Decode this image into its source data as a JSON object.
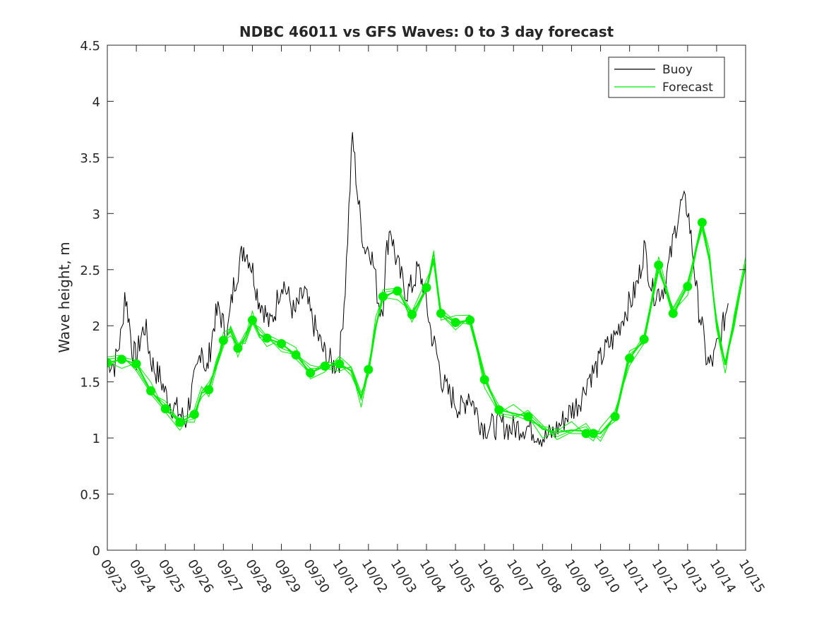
{
  "chart_data": {
    "type": "line",
    "title": "NDBC 46011 vs GFS Waves: 0 to 3 day forecast",
    "xlabel": "",
    "ylabel": "Wave height, m",
    "xlim": [
      0,
      22
    ],
    "ylim": [
      0,
      4.5
    ],
    "grid": false,
    "legend_position": "top-right",
    "x_tick_labels": [
      "09/23",
      "09/24",
      "09/25",
      "09/26",
      "09/27",
      "09/28",
      "09/29",
      "09/30",
      "10/01",
      "10/02",
      "10/03",
      "10/04",
      "10/05",
      "10/06",
      "10/07",
      "10/08",
      "10/09",
      "10/10",
      "10/11",
      "10/12",
      "10/13",
      "10/14",
      "10/15"
    ],
    "y_tick_labels": [
      "0",
      "0.5",
      "1",
      "1.5",
      "2",
      "2.5",
      "3",
      "3.5",
      "4",
      "4.5"
    ],
    "legend": [
      {
        "name": "Buoy",
        "color": "#000000"
      },
      {
        "name": "Forecast",
        "color": "#00ee00"
      }
    ],
    "series": [
      {
        "name": "Buoy",
        "color": "#000000",
        "x_units": "days since 09/23",
        "x": [
          0.0,
          0.25,
          0.5,
          0.6,
          0.75,
          0.85,
          1.0,
          1.15,
          1.3,
          1.5,
          1.65,
          1.8,
          2.0,
          2.2,
          2.4,
          2.55,
          2.7,
          2.8,
          2.95,
          3.1,
          3.25,
          3.4,
          3.55,
          3.7,
          3.85,
          4.0,
          4.15,
          4.35,
          4.55,
          4.7,
          4.9,
          5.05,
          5.2,
          5.4,
          5.6,
          5.8,
          5.9,
          6.05,
          6.25,
          6.45,
          6.6,
          6.8,
          7.0,
          7.2,
          7.4,
          7.6,
          7.8,
          8.0,
          8.2,
          8.45,
          8.65,
          8.85,
          9.05,
          9.2,
          9.3,
          9.4,
          9.5,
          9.6,
          9.75,
          9.9,
          10.1,
          10.3,
          10.5,
          10.7,
          10.85,
          11.0,
          11.15,
          11.35,
          11.55,
          11.75,
          11.95,
          12.15,
          12.3,
          12.45,
          12.55,
          12.7,
          12.85,
          13.0,
          13.3,
          13.6,
          13.9,
          14.2,
          14.5,
          14.8,
          15.1,
          15.4,
          15.7,
          16.0,
          16.2,
          16.4,
          16.5,
          16.6,
          16.8,
          17.0,
          17.2,
          17.5,
          17.8,
          18.1,
          18.3,
          18.5,
          18.8,
          19.0,
          19.2,
          19.4,
          19.6,
          19.8,
          20.0,
          20.2,
          20.35,
          20.5,
          20.6,
          20.75,
          20.9,
          21.0,
          21.15,
          21.3,
          21.4
        ],
        "values": [
          1.7,
          1.65,
          1.95,
          2.3,
          2.05,
          1.8,
          1.7,
          1.9,
          2.0,
          1.7,
          1.6,
          1.55,
          1.4,
          1.3,
          1.25,
          1.2,
          1.15,
          1.3,
          1.45,
          1.6,
          1.85,
          1.55,
          1.8,
          2.05,
          2.15,
          2.0,
          1.95,
          2.35,
          2.55,
          2.7,
          2.6,
          2.45,
          2.25,
          2.15,
          2.0,
          2.15,
          2.3,
          2.4,
          2.25,
          2.1,
          2.2,
          2.3,
          2.1,
          1.95,
          1.8,
          1.7,
          1.65,
          1.7,
          2.35,
          3.7,
          3.1,
          2.7,
          2.7,
          2.5,
          2.3,
          2.15,
          2.2,
          2.6,
          2.9,
          2.65,
          2.45,
          2.3,
          2.35,
          2.5,
          2.4,
          2.2,
          1.95,
          1.75,
          1.5,
          1.4,
          1.35,
          1.25,
          1.3,
          1.4,
          1.35,
          1.25,
          1.15,
          1.1,
          1.1,
          1.12,
          1.08,
          1.1,
          1.1,
          1.05,
          1.0,
          1.05,
          1.15,
          1.25,
          1.3,
          1.4,
          1.5,
          1.55,
          1.6,
          1.7,
          1.8,
          1.9,
          2.1,
          2.25,
          2.4,
          2.7,
          2.3,
          2.3,
          2.35,
          2.6,
          2.9,
          3.1,
          3.05,
          2.6,
          2.2,
          2.0,
          1.75,
          1.65,
          1.7,
          1.8,
          1.9,
          2.1,
          2.2
        ]
      },
      {
        "name": "Forecast",
        "color": "#00ee00",
        "x_units": "days since 09/23",
        "x": [
          0.0,
          0.5,
          1.0,
          1.5,
          2.0,
          2.5,
          3.0,
          3.25,
          3.5,
          3.75,
          4.0,
          4.25,
          4.5,
          4.75,
          5.0,
          5.25,
          5.5,
          6.0,
          6.5,
          7.0,
          7.5,
          8.0,
          8.4,
          8.75,
          9.0,
          9.25,
          9.5,
          10.0,
          10.5,
          11.0,
          11.25,
          11.5,
          12.0,
          12.5,
          13.0,
          13.5,
          14.0,
          14.5,
          15.0,
          15.5,
          16.0,
          16.5,
          16.75,
          17.0,
          17.5,
          18.0,
          18.5,
          19.0,
          19.5,
          20.0,
          20.5,
          20.75,
          21.0,
          21.3,
          21.6,
          22.0
        ],
        "values": [
          1.67,
          1.7,
          1.66,
          1.42,
          1.26,
          1.14,
          1.21,
          1.4,
          1.43,
          1.65,
          1.87,
          1.95,
          1.8,
          1.9,
          2.05,
          1.92,
          1.89,
          1.84,
          1.74,
          1.58,
          1.64,
          1.66,
          1.6,
          1.35,
          1.61,
          2.0,
          2.26,
          2.31,
          2.1,
          2.34,
          2.6,
          2.11,
          2.03,
          2.05,
          1.52,
          1.25,
          1.22,
          1.19,
          1.08,
          1.05,
          1.07,
          1.06,
          1.04,
          1.04,
          1.19,
          1.71,
          1.88,
          2.54,
          2.11,
          2.35,
          2.92,
          2.6,
          2.0,
          1.65,
          2.05,
          2.55
        ]
      }
    ],
    "forecast_markers": {
      "x": [
        0.0,
        0.5,
        1.0,
        1.5,
        2.0,
        2.5,
        3.0,
        3.5,
        4.0,
        4.5,
        5.0,
        5.5,
        6.0,
        6.5,
        7.0,
        7.5,
        8.0,
        9.0,
        9.5,
        10.0,
        10.5,
        11.0,
        11.5,
        12.0,
        12.5,
        13.0,
        13.5,
        14.5,
        16.5,
        16.75,
        17.5,
        18.0,
        18.5,
        19.0,
        19.5,
        20.0,
        20.5
      ],
      "values": [
        1.67,
        1.7,
        1.66,
        1.42,
        1.26,
        1.14,
        1.21,
        1.43,
        1.87,
        1.8,
        2.05,
        1.89,
        1.84,
        1.74,
        1.58,
        1.64,
        1.66,
        1.61,
        2.26,
        2.31,
        2.1,
        2.34,
        2.11,
        2.03,
        2.05,
        1.52,
        1.25,
        1.19,
        1.04,
        1.04,
        1.19,
        1.71,
        1.88,
        2.54,
        2.11,
        2.35,
        2.92
      ]
    }
  }
}
